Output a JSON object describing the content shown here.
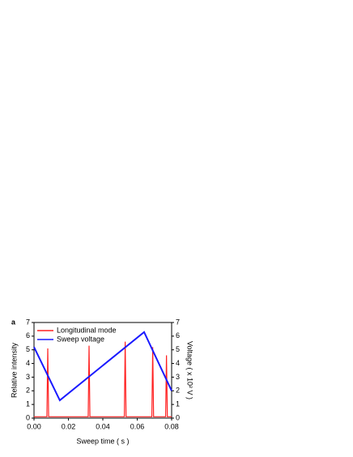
{
  "chart_data": {
    "type": "line",
    "panel_label": "a",
    "x_label": "Sweep time ( s )",
    "y_label": "Relative intensity",
    "y2_label": "Voltage ( x 10² V )",
    "xlim": [
      0,
      0.08
    ],
    "xticks": [
      {
        "value": 0,
        "label": "0.00"
      },
      {
        "value": 0.02,
        "label": "0.02"
      },
      {
        "value": 0.04,
        "label": "0.04"
      },
      {
        "value": 0.06,
        "label": "0.06"
      },
      {
        "value": 0.08,
        "label": "0.08"
      }
    ],
    "ylim": [
      0,
      7
    ],
    "yticks": [
      0,
      1,
      2,
      3,
      4,
      5,
      6,
      7
    ],
    "y2lim": [
      0,
      7
    ],
    "y2ticks": [
      0,
      1,
      2,
      3,
      4,
      5,
      6,
      7
    ],
    "legend": "top-left",
    "series": [
      {
        "name": "Longitudinal mode",
        "color": "#ff2020",
        "x": [
          0,
          0.0075,
          0.008,
          0.0085,
          0.0315,
          0.032,
          0.0325,
          0.0525,
          0.053,
          0.0535,
          0.0685,
          0.069,
          0.0695,
          0.0765,
          0.077,
          0.0775,
          0.08
        ],
        "values": [
          0.1,
          0.1,
          5.1,
          0.1,
          0.1,
          5.3,
          0.1,
          0.1,
          5.6,
          0.1,
          0.1,
          5.2,
          0.1,
          0.1,
          4.6,
          0.1,
          0.1
        ]
      },
      {
        "name": "Sweep voltage",
        "color": "#1a1aff",
        "axis": "y2",
        "x": [
          0,
          0.015,
          0.064,
          0.08
        ],
        "values": [
          5.2,
          1.3,
          6.3,
          2.0
        ]
      }
    ]
  }
}
